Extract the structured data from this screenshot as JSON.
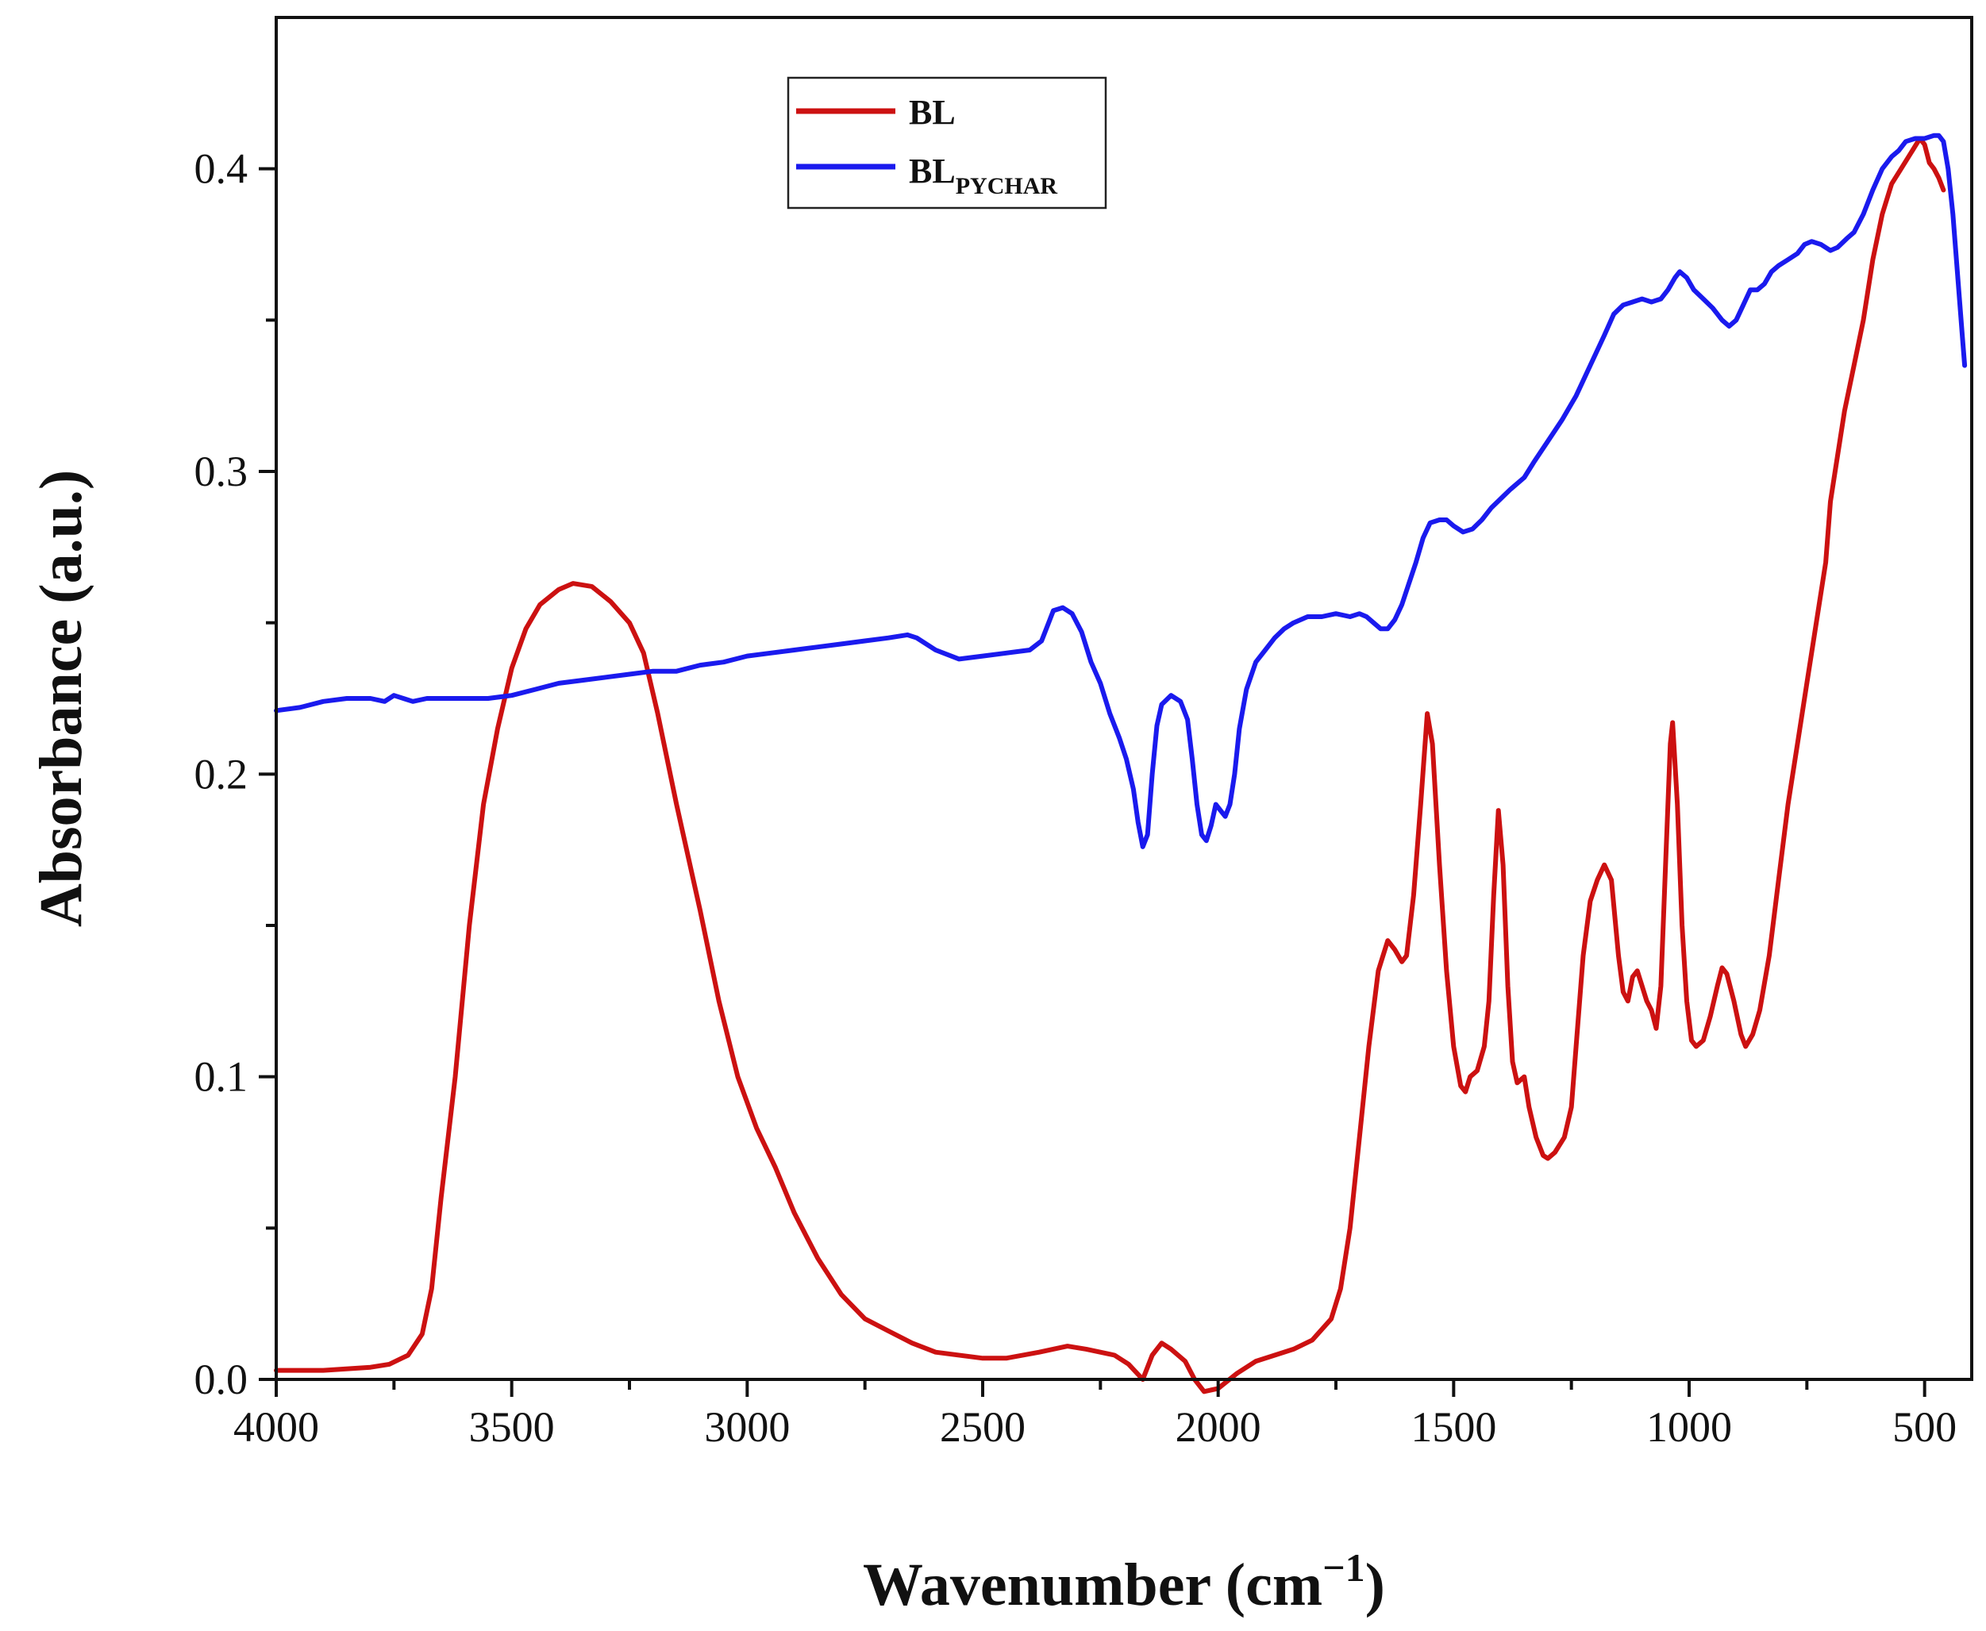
{
  "chart_data": {
    "type": "line",
    "title": "",
    "xlabel": "Wavenumber (cm",
    "xlabel_sup": "−1",
    "xlabel_close": ")",
    "ylabel": "Absorbance (a.u.)",
    "xlim": [
      4000,
      400
    ],
    "ylim": [
      0.0,
      0.45
    ],
    "x_ticks": [
      4000,
      3500,
      3000,
      2500,
      2000,
      1500,
      1000,
      500
    ],
    "x_tick_labels": [
      "4000",
      "3500",
      "3000",
      "2500",
      "2000",
      "1500",
      "1000",
      "500"
    ],
    "y_ticks": [
      0.0,
      0.1,
      0.2,
      0.3,
      0.4
    ],
    "y_tick_labels": [
      "0.0",
      "0.1",
      "0.2",
      "0.3",
      "0.4"
    ],
    "legend_position": "top-left",
    "legend": {
      "bl_label": "BL",
      "pychar_label_main": "BL",
      "pychar_label_sub": "PYCHAR"
    },
    "series": [
      {
        "name": "BL",
        "color": "#cc1111",
        "points": [
          [
            4000,
            0.003
          ],
          [
            3900,
            0.003
          ],
          [
            3800,
            0.004
          ],
          [
            3760,
            0.005
          ],
          [
            3720,
            0.008
          ],
          [
            3690,
            0.015
          ],
          [
            3670,
            0.03
          ],
          [
            3650,
            0.06
          ],
          [
            3620,
            0.1
          ],
          [
            3590,
            0.15
          ],
          [
            3560,
            0.19
          ],
          [
            3530,
            0.215
          ],
          [
            3500,
            0.235
          ],
          [
            3470,
            0.248
          ],
          [
            3440,
            0.256
          ],
          [
            3400,
            0.261
          ],
          [
            3370,
            0.263
          ],
          [
            3330,
            0.262
          ],
          [
            3290,
            0.257
          ],
          [
            3250,
            0.25
          ],
          [
            3220,
            0.24
          ],
          [
            3190,
            0.22
          ],
          [
            3150,
            0.19
          ],
          [
            3100,
            0.155
          ],
          [
            3060,
            0.125
          ],
          [
            3020,
            0.1
          ],
          [
            2980,
            0.083
          ],
          [
            2940,
            0.07
          ],
          [
            2900,
            0.055
          ],
          [
            2850,
            0.04
          ],
          [
            2800,
            0.028
          ],
          [
            2750,
            0.02
          ],
          [
            2700,
            0.016
          ],
          [
            2650,
            0.012
          ],
          [
            2600,
            0.009
          ],
          [
            2500,
            0.007
          ],
          [
            2450,
            0.007
          ],
          [
            2380,
            0.009
          ],
          [
            2320,
            0.011
          ],
          [
            2280,
            0.01
          ],
          [
            2220,
            0.008
          ],
          [
            2190,
            0.005
          ],
          [
            2160,
            0.0
          ],
          [
            2140,
            0.008
          ],
          [
            2120,
            0.012
          ],
          [
            2100,
            0.01
          ],
          [
            2070,
            0.006
          ],
          [
            2050,
            0.0
          ],
          [
            2030,
            -0.005
          ],
          [
            2000,
            -0.003
          ],
          [
            1960,
            0.002
          ],
          [
            1920,
            0.006
          ],
          [
            1880,
            0.008
          ],
          [
            1840,
            0.01
          ],
          [
            1800,
            0.013
          ],
          [
            1760,
            0.02
          ],
          [
            1740,
            0.03
          ],
          [
            1720,
            0.05
          ],
          [
            1700,
            0.08
          ],
          [
            1680,
            0.11
          ],
          [
            1660,
            0.135
          ],
          [
            1640,
            0.145
          ],
          [
            1625,
            0.142
          ],
          [
            1610,
            0.138
          ],
          [
            1600,
            0.14
          ],
          [
            1585,
            0.16
          ],
          [
            1570,
            0.19
          ],
          [
            1556,
            0.22
          ],
          [
            1545,
            0.21
          ],
          [
            1530,
            0.17
          ],
          [
            1515,
            0.135
          ],
          [
            1500,
            0.11
          ],
          [
            1485,
            0.097
          ],
          [
            1475,
            0.095
          ],
          [
            1465,
            0.1
          ],
          [
            1450,
            0.102
          ],
          [
            1435,
            0.11
          ],
          [
            1425,
            0.125
          ],
          [
            1415,
            0.16
          ],
          [
            1405,
            0.188
          ],
          [
            1395,
            0.17
          ],
          [
            1385,
            0.13
          ],
          [
            1375,
            0.105
          ],
          [
            1365,
            0.098
          ],
          [
            1350,
            0.1
          ],
          [
            1340,
            0.09
          ],
          [
            1325,
            0.08
          ],
          [
            1310,
            0.074
          ],
          [
            1300,
            0.073
          ],
          [
            1285,
            0.075
          ],
          [
            1265,
            0.08
          ],
          [
            1250,
            0.09
          ],
          [
            1240,
            0.11
          ],
          [
            1225,
            0.14
          ],
          [
            1210,
            0.158
          ],
          [
            1195,
            0.165
          ],
          [
            1180,
            0.17
          ],
          [
            1165,
            0.165
          ],
          [
            1150,
            0.14
          ],
          [
            1140,
            0.128
          ],
          [
            1130,
            0.125
          ],
          [
            1120,
            0.133
          ],
          [
            1110,
            0.135
          ],
          [
            1100,
            0.13
          ],
          [
            1090,
            0.125
          ],
          [
            1080,
            0.122
          ],
          [
            1070,
            0.116
          ],
          [
            1060,
            0.13
          ],
          [
            1050,
            0.17
          ],
          [
            1040,
            0.21
          ],
          [
            1035,
            0.217
          ],
          [
            1025,
            0.19
          ],
          [
            1015,
            0.15
          ],
          [
            1005,
            0.125
          ],
          [
            995,
            0.112
          ],
          [
            985,
            0.11
          ],
          [
            970,
            0.112
          ],
          [
            955,
            0.12
          ],
          [
            940,
            0.13
          ],
          [
            930,
            0.136
          ],
          [
            920,
            0.134
          ],
          [
            905,
            0.125
          ],
          [
            890,
            0.114
          ],
          [
            880,
            0.11
          ],
          [
            865,
            0.114
          ],
          [
            850,
            0.122
          ],
          [
            830,
            0.14
          ],
          [
            810,
            0.165
          ],
          [
            790,
            0.19
          ],
          [
            770,
            0.21
          ],
          [
            750,
            0.23
          ],
          [
            730,
            0.25
          ],
          [
            710,
            0.27
          ],
          [
            700,
            0.29
          ],
          [
            690,
            0.3
          ],
          [
            670,
            0.32
          ],
          [
            650,
            0.335
          ],
          [
            630,
            0.35
          ],
          [
            610,
            0.37
          ],
          [
            590,
            0.385
          ],
          [
            570,
            0.395
          ],
          [
            550,
            0.4
          ],
          [
            530,
            0.405
          ],
          [
            510,
            0.41
          ],
          [
            500,
            0.408
          ],
          [
            490,
            0.402
          ],
          [
            480,
            0.4
          ],
          [
            470,
            0.397
          ],
          [
            460,
            0.393
          ]
        ]
      },
      {
        "name": "BL_PYCHAR",
        "color": "#1a1aee",
        "points": [
          [
            4000,
            0.221
          ],
          [
            3950,
            0.222
          ],
          [
            3900,
            0.224
          ],
          [
            3850,
            0.225
          ],
          [
            3800,
            0.225
          ],
          [
            3770,
            0.224
          ],
          [
            3750,
            0.226
          ],
          [
            3730,
            0.225
          ],
          [
            3710,
            0.224
          ],
          [
            3680,
            0.225
          ],
          [
            3640,
            0.225
          ],
          [
            3600,
            0.225
          ],
          [
            3550,
            0.225
          ],
          [
            3500,
            0.226
          ],
          [
            3450,
            0.228
          ],
          [
            3400,
            0.23
          ],
          [
            3350,
            0.231
          ],
          [
            3300,
            0.232
          ],
          [
            3250,
            0.233
          ],
          [
            3200,
            0.234
          ],
          [
            3150,
            0.234
          ],
          [
            3100,
            0.236
          ],
          [
            3050,
            0.237
          ],
          [
            3000,
            0.239
          ],
          [
            2950,
            0.24
          ],
          [
            2900,
            0.241
          ],
          [
            2850,
            0.242
          ],
          [
            2800,
            0.243
          ],
          [
            2750,
            0.244
          ],
          [
            2700,
            0.245
          ],
          [
            2660,
            0.246
          ],
          [
            2640,
            0.245
          ],
          [
            2600,
            0.241
          ],
          [
            2550,
            0.238
          ],
          [
            2500,
            0.239
          ],
          [
            2450,
            0.24
          ],
          [
            2400,
            0.241
          ],
          [
            2375,
            0.244
          ],
          [
            2360,
            0.25
          ],
          [
            2350,
            0.254
          ],
          [
            2330,
            0.255
          ],
          [
            2310,
            0.253
          ],
          [
            2290,
            0.247
          ],
          [
            2270,
            0.237
          ],
          [
            2250,
            0.23
          ],
          [
            2230,
            0.22
          ],
          [
            2210,
            0.212
          ],
          [
            2195,
            0.205
          ],
          [
            2180,
            0.195
          ],
          [
            2170,
            0.184
          ],
          [
            2160,
            0.176
          ],
          [
            2150,
            0.18
          ],
          [
            2140,
            0.2
          ],
          [
            2130,
            0.216
          ],
          [
            2120,
            0.223
          ],
          [
            2100,
            0.226
          ],
          [
            2080,
            0.224
          ],
          [
            2065,
            0.218
          ],
          [
            2055,
            0.205
          ],
          [
            2045,
            0.19
          ],
          [
            2035,
            0.18
          ],
          [
            2025,
            0.178
          ],
          [
            2015,
            0.183
          ],
          [
            2005,
            0.19
          ],
          [
            1995,
            0.188
          ],
          [
            1985,
            0.186
          ],
          [
            1975,
            0.19
          ],
          [
            1965,
            0.2
          ],
          [
            1955,
            0.215
          ],
          [
            1940,
            0.228
          ],
          [
            1920,
            0.237
          ],
          [
            1900,
            0.241
          ],
          [
            1880,
            0.245
          ],
          [
            1860,
            0.248
          ],
          [
            1840,
            0.25
          ],
          [
            1810,
            0.252
          ],
          [
            1780,
            0.252
          ],
          [
            1750,
            0.253
          ],
          [
            1720,
            0.252
          ],
          [
            1700,
            0.253
          ],
          [
            1685,
            0.252
          ],
          [
            1670,
            0.25
          ],
          [
            1655,
            0.248
          ],
          [
            1640,
            0.248
          ],
          [
            1625,
            0.251
          ],
          [
            1610,
            0.256
          ],
          [
            1595,
            0.263
          ],
          [
            1580,
            0.27
          ],
          [
            1565,
            0.278
          ],
          [
            1550,
            0.283
          ],
          [
            1530,
            0.284
          ],
          [
            1515,
            0.284
          ],
          [
            1500,
            0.282
          ],
          [
            1480,
            0.28
          ],
          [
            1460,
            0.281
          ],
          [
            1440,
            0.284
          ],
          [
            1420,
            0.288
          ],
          [
            1400,
            0.291
          ],
          [
            1380,
            0.294
          ],
          [
            1350,
            0.298
          ],
          [
            1330,
            0.303
          ],
          [
            1300,
            0.31
          ],
          [
            1270,
            0.317
          ],
          [
            1240,
            0.325
          ],
          [
            1210,
            0.335
          ],
          [
            1180,
            0.345
          ],
          [
            1160,
            0.352
          ],
          [
            1140,
            0.355
          ],
          [
            1120,
            0.356
          ],
          [
            1100,
            0.357
          ],
          [
            1080,
            0.356
          ],
          [
            1060,
            0.357
          ],
          [
            1045,
            0.36
          ],
          [
            1030,
            0.364
          ],
          [
            1020,
            0.366
          ],
          [
            1005,
            0.364
          ],
          [
            990,
            0.36
          ],
          [
            970,
            0.357
          ],
          [
            950,
            0.354
          ],
          [
            930,
            0.35
          ],
          [
            915,
            0.348
          ],
          [
            900,
            0.35
          ],
          [
            885,
            0.355
          ],
          [
            870,
            0.36
          ],
          [
            855,
            0.36
          ],
          [
            840,
            0.362
          ],
          [
            825,
            0.366
          ],
          [
            810,
            0.368
          ],
          [
            790,
            0.37
          ],
          [
            770,
            0.372
          ],
          [
            755,
            0.375
          ],
          [
            740,
            0.376
          ],
          [
            720,
            0.375
          ],
          [
            700,
            0.373
          ],
          [
            685,
            0.374
          ],
          [
            665,
            0.377
          ],
          [
            650,
            0.379
          ],
          [
            630,
            0.385
          ],
          [
            610,
            0.393
          ],
          [
            590,
            0.4
          ],
          [
            570,
            0.404
          ],
          [
            555,
            0.406
          ],
          [
            540,
            0.409
          ],
          [
            520,
            0.41
          ],
          [
            500,
            0.41
          ],
          [
            480,
            0.411
          ],
          [
            470,
            0.411
          ],
          [
            460,
            0.409
          ],
          [
            450,
            0.4
          ],
          [
            440,
            0.385
          ],
          [
            430,
            0.365
          ],
          [
            420,
            0.345
          ],
          [
            415,
            0.335
          ]
        ]
      }
    ]
  }
}
